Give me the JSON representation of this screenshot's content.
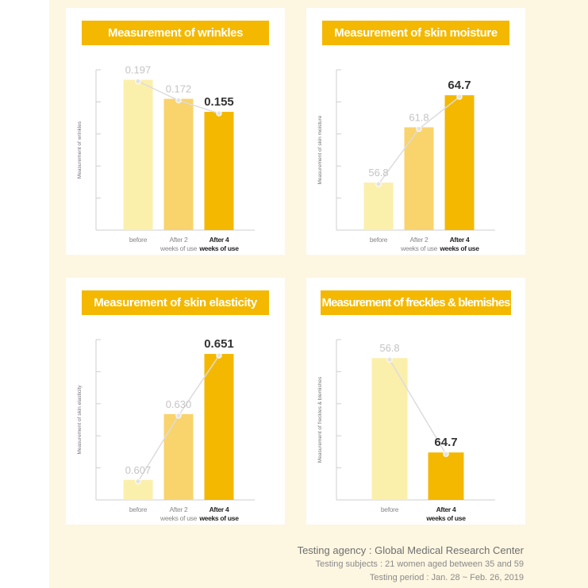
{
  "colors": {
    "before": "#fbefac",
    "week2": "#f9d36c",
    "week4": "#f4b800",
    "title_bg": "#f4b800",
    "line": "#dcdcdc"
  },
  "chart_data": [
    {
      "type": "bar",
      "title": "Measurement of wrinkles",
      "ylabel": "Measurement of wrinkles",
      "categories": [
        [
          "before"
        ],
        [
          "After 2",
          "weeks of use"
        ],
        [
          "After 4",
          "weeks of use"
        ]
      ],
      "values": [
        0.197,
        0.172,
        0.155
      ],
      "value_labels": [
        "0.197",
        "0.172",
        "0.155"
      ],
      "ylim": [
        0,
        0.21
      ],
      "highlight_last": true,
      "trend_line": true
    },
    {
      "type": "bar",
      "title": "Measurement of skin moisture",
      "ylabel": "Measurement of skin moisture",
      "categories": [
        [
          "before"
        ],
        [
          "After 2",
          "weeks of use"
        ],
        [
          "After 4",
          "weeks of use"
        ]
      ],
      "values": [
        56.8,
        61.8,
        64.7
      ],
      "value_labels": [
        "56.8",
        "61.8",
        "64.7"
      ],
      "ylim": [
        52.5,
        67
      ],
      "highlight_last": true,
      "trend_line": true
    },
    {
      "type": "bar",
      "title": "Measurement of skin elasticity",
      "ylabel": "Measurement of skin elasticity",
      "categories": [
        [
          "before"
        ],
        [
          "After 2",
          "weeks of use"
        ],
        [
          "After 4",
          "weeks of use"
        ]
      ],
      "values": [
        0.607,
        0.63,
        0.651
      ],
      "value_labels": [
        "0.607",
        "0.630",
        "0.651"
      ],
      "ylim": [
        0.6,
        0.656
      ],
      "highlight_last": true,
      "trend_line": true
    },
    {
      "type": "bar",
      "title": "Measurement of freckles & blemishes",
      "ylabel": "Measurement of freckles & blemishes",
      "categories": [
        [
          "before"
        ],
        [
          "After 4",
          "weeks of use"
        ]
      ],
      "values": [
        56.8,
        64.7
      ],
      "bar_levels": [
        0.885,
        0.296
      ],
      "value_labels": [
        "56.8",
        "64.7"
      ],
      "highlight_last": true,
      "trend_line": true
    }
  ],
  "footer": {
    "agency": "Testing agency : Global Medical Research Center",
    "subjects": "Testing subjects : 21 women aged between 35 and 59",
    "period": "Testing period : Jan. 28 ~ Feb. 26, 2019"
  }
}
